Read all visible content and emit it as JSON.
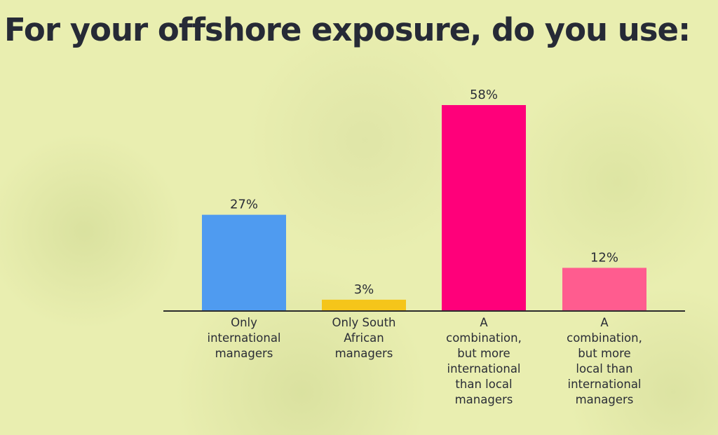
{
  "title": "For your offshore exposure, do you use:",
  "chart_data": {
    "type": "bar",
    "categories": [
      "Only international managers",
      "Only South African managers",
      "A combination, but more international than local managers",
      "A combination, but more local than international managers"
    ],
    "category_lines": [
      [
        "Only",
        "international",
        "managers"
      ],
      [
        "Only South",
        "African",
        "managers"
      ],
      [
        "A",
        "combination,",
        "but more",
        "international",
        "than local",
        "managers"
      ],
      [
        "A",
        "combination,",
        "but more",
        "local than",
        "international",
        "managers"
      ]
    ],
    "values": [
      27,
      3,
      58,
      12
    ],
    "value_labels": [
      "27%",
      "3%",
      "58%",
      "12%"
    ],
    "colors": [
      "#4f9bf0",
      "#f5c51a",
      "#ff007a",
      "#ff5c8f"
    ],
    "ylim": [
      0,
      58
    ],
    "grid": false,
    "legend": "none"
  }
}
